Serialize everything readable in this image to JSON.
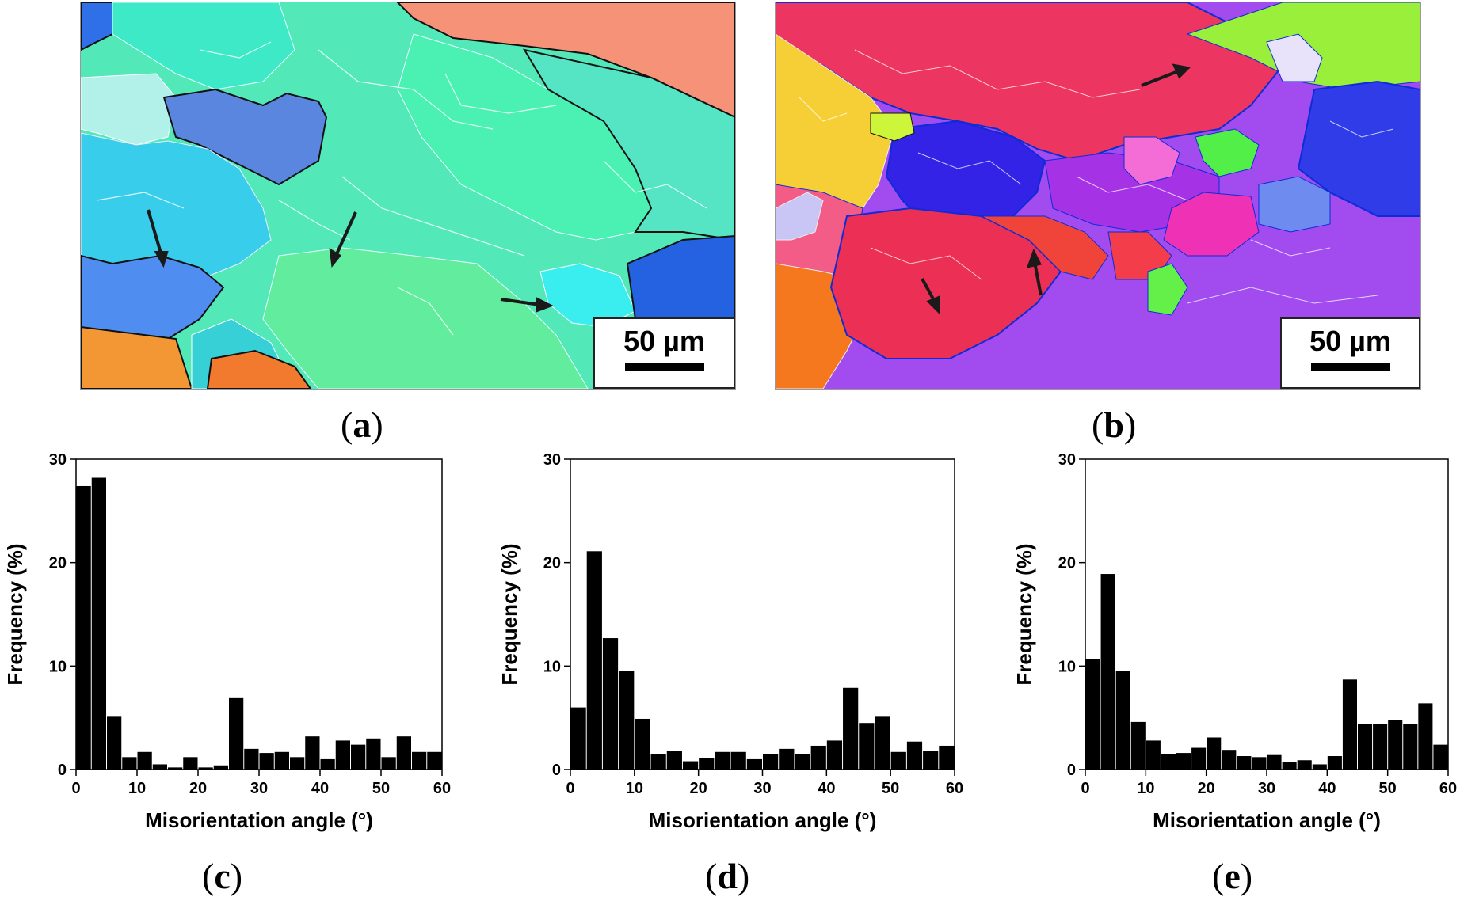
{
  "maps": [
    {
      "id": "a",
      "scale_label": "50 µm",
      "label": "a"
    },
    {
      "id": "b",
      "scale_label": "50 µm",
      "label": "b"
    }
  ],
  "chart_data": [
    {
      "id": "c",
      "type": "bar",
      "label": "c",
      "xlabel": "Misorientation angle (°)",
      "ylabel": "Frequency (%)",
      "xlim": [
        0,
        60
      ],
      "ylim": [
        0,
        30
      ],
      "xticks": [
        0,
        10,
        20,
        30,
        40,
        50,
        60
      ],
      "yticks": [
        0,
        10,
        20,
        30
      ],
      "bin_width": 2.5,
      "x": [
        1.25,
        3.75,
        6.25,
        8.75,
        11.25,
        13.75,
        16.25,
        18.75,
        21.25,
        23.75,
        26.25,
        28.75,
        31.25,
        33.75,
        36.25,
        38.75,
        41.25,
        43.75,
        46.25,
        48.75,
        51.25,
        53.75,
        56.25,
        58.75
      ],
      "values": [
        27.4,
        28.2,
        5.1,
        1.2,
        1.7,
        0.5,
        0.2,
        1.2,
        0.2,
        0.4,
        6.9,
        2.0,
        1.6,
        1.7,
        1.2,
        3.2,
        1.0,
        2.8,
        2.4,
        3.0,
        1.2,
        3.2,
        1.7,
        1.7
      ]
    },
    {
      "id": "d",
      "type": "bar",
      "label": "d",
      "xlabel": "Misorientation angle (°)",
      "ylabel": "Frequency (%)",
      "xlim": [
        0,
        60
      ],
      "ylim": [
        0,
        30
      ],
      "xticks": [
        0,
        10,
        20,
        30,
        40,
        50,
        60
      ],
      "yticks": [
        0,
        10,
        20,
        30
      ],
      "bin_width": 2.5,
      "x": [
        1.25,
        3.75,
        6.25,
        8.75,
        11.25,
        13.75,
        16.25,
        18.75,
        21.25,
        23.75,
        26.25,
        28.75,
        31.25,
        33.75,
        36.25,
        38.75,
        41.25,
        43.75,
        46.25,
        48.75,
        51.25,
        53.75,
        56.25,
        58.75
      ],
      "values": [
        6.0,
        21.1,
        12.7,
        9.5,
        4.9,
        1.5,
        1.8,
        0.8,
        1.1,
        1.7,
        1.7,
        1.0,
        1.5,
        2.0,
        1.5,
        2.3,
        2.8,
        7.9,
        4.5,
        5.1,
        1.7,
        2.7,
        1.8,
        2.3
      ]
    },
    {
      "id": "e",
      "type": "bar",
      "label": "e",
      "xlabel": "Misorientation angle (°)",
      "ylabel": "Frequency (%)",
      "xlim": [
        0,
        60
      ],
      "ylim": [
        0,
        30
      ],
      "xticks": [
        0,
        10,
        20,
        30,
        40,
        50,
        60
      ],
      "yticks": [
        0,
        10,
        20,
        30
      ],
      "bin_width": 2.5,
      "x": [
        1.25,
        3.75,
        6.25,
        8.75,
        11.25,
        13.75,
        16.25,
        18.75,
        21.25,
        23.75,
        26.25,
        28.75,
        31.25,
        33.75,
        36.25,
        38.75,
        41.25,
        43.75,
        46.25,
        48.75,
        51.25,
        53.75,
        56.25,
        58.75
      ],
      "values": [
        10.7,
        18.9,
        9.5,
        4.6,
        2.8,
        1.5,
        1.6,
        2.1,
        3.1,
        1.9,
        1.3,
        1.2,
        1.4,
        0.7,
        0.9,
        0.5,
        1.3,
        8.7,
        4.4,
        4.4,
        4.8,
        4.4,
        6.4,
        2.4
      ]
    }
  ]
}
